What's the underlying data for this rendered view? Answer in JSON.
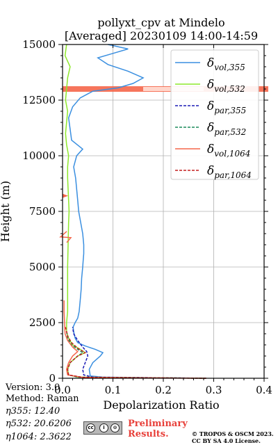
{
  "chart_data": {
    "type": "line",
    "title": "pollyxt_cpv at Mindelo",
    "subtitle": "[Averaged] 20230109 14:00-14:59",
    "xlabel": "Depolarization Ratio",
    "ylabel": "Height (m)",
    "xlim": [
      0,
      0.4
    ],
    "ylim": [
      0,
      15000
    ],
    "x_ticks": [
      "0.0",
      "0.1",
      "0.2",
      "0.3",
      "0.4"
    ],
    "y_ticks": [
      "0",
      "2500",
      "5000",
      "7500",
      "10000",
      "12500",
      "15000"
    ],
    "grid": true,
    "legend_position": "top-right",
    "legend": [
      {
        "base": "δ",
        "sub": "vol,355",
        "color": "#3a8fe0",
        "dash": "solid"
      },
      {
        "base": "δ",
        "sub": "vol,532",
        "color": "#8ee82a",
        "dash": "solid"
      },
      {
        "base": "δ",
        "sub": "par,355",
        "color": "#1a1ab5",
        "dash": "dashed"
      },
      {
        "base": "δ",
        "sub": "par,532",
        "color": "#1b8a5a",
        "dash": "dashed"
      },
      {
        "base": "δ",
        "sub": "vol,1064",
        "color": "#f5664a",
        "dash": "solid"
      },
      {
        "base": "δ",
        "sub": "par,1064",
        "color": "#c41e1e",
        "dash": "dashed"
      }
    ],
    "series": [
      {
        "name": "δvol,355",
        "color": "#3a8fe0",
        "dash": "solid",
        "points": [
          [
            0.285,
            0
          ],
          [
            0.08,
            50
          ],
          [
            0.055,
            100
          ],
          [
            0.053,
            400
          ],
          [
            0.06,
            700
          ],
          [
            0.075,
            1000
          ],
          [
            0.08,
            1150
          ],
          [
            0.065,
            1300
          ],
          [
            0.045,
            1450
          ],
          [
            0.03,
            1600
          ],
          [
            0.025,
            1800
          ],
          [
            0.022,
            2100
          ],
          [
            0.021,
            2300
          ],
          [
            0.025,
            2500
          ],
          [
            0.03,
            2700
          ],
          [
            0.033,
            3000
          ],
          [
            0.035,
            3500
          ],
          [
            0.037,
            4000
          ],
          [
            0.038,
            4500
          ],
          [
            0.04,
            5000
          ],
          [
            0.041,
            5300
          ],
          [
            0.042,
            5600
          ],
          [
            0.042,
            6000
          ],
          [
            0.04,
            6500
          ],
          [
            0.036,
            7000
          ],
          [
            0.032,
            7500
          ],
          [
            0.03,
            8000
          ],
          [
            0.028,
            8500
          ],
          [
            0.026,
            9000
          ],
          [
            0.022,
            9500
          ],
          [
            0.028,
            10000
          ],
          [
            0.04,
            10300
          ],
          [
            0.018,
            10700
          ],
          [
            0.015,
            11200
          ],
          [
            0.012,
            11700
          ],
          [
            0.02,
            12200
          ],
          [
            0.035,
            12600
          ],
          [
            0.06,
            12900
          ],
          [
            0.11,
            13050
          ],
          [
            0.14,
            13250
          ],
          [
            0.16,
            13500
          ],
          [
            0.13,
            13800
          ],
          [
            0.09,
            14100
          ],
          [
            0.07,
            14400
          ],
          [
            0.1,
            14600
          ],
          [
            0.13,
            14800
          ],
          [
            0.09,
            15000
          ]
        ]
      },
      {
        "name": "δvol,532",
        "color": "#8ee82a",
        "dash": "solid",
        "points": [
          [
            0.285,
            0
          ],
          [
            0.03,
            50
          ],
          [
            0.012,
            150
          ],
          [
            0.01,
            400
          ],
          [
            0.015,
            700
          ],
          [
            0.03,
            1000
          ],
          [
            0.045,
            1150
          ],
          [
            0.035,
            1300
          ],
          [
            0.02,
            1500
          ],
          [
            0.012,
            1800
          ],
          [
            0.008,
            2100
          ],
          [
            0.008,
            2500
          ],
          [
            0.01,
            3000
          ],
          [
            0.01,
            4000
          ],
          [
            0.01,
            5000
          ],
          [
            0.011,
            6000
          ],
          [
            0.012,
            7000
          ],
          [
            0.013,
            7500
          ],
          [
            0.012,
            8000
          ],
          [
            0.01,
            9000
          ],
          [
            0.01,
            9500
          ],
          [
            0.012,
            10000
          ],
          [
            0.008,
            10500
          ],
          [
            0.006,
            11000
          ],
          [
            0.008,
            11500
          ],
          [
            0.01,
            12000
          ],
          [
            0.006,
            12500
          ],
          [
            0.008,
            13000
          ],
          [
            0.01,
            13500
          ],
          [
            0.015,
            14000
          ],
          [
            0.005,
            14500
          ],
          [
            0.008,
            15000
          ]
        ]
      },
      {
        "name": "δpar,355",
        "color": "#1a1ab5",
        "dash": "dashed",
        "points": [
          [
            0.285,
            0
          ],
          [
            0.06,
            50
          ],
          [
            0.042,
            150
          ],
          [
            0.04,
            400
          ],
          [
            0.045,
            700
          ],
          [
            0.05,
            1000
          ],
          [
            0.048,
            1200
          ],
          [
            0.04,
            1400
          ],
          [
            0.03,
            1700
          ],
          [
            0.022,
            2000
          ],
          [
            0.02,
            2300
          ]
        ]
      },
      {
        "name": "δpar,532",
        "color": "#1b8a5a",
        "dash": "dashed",
        "points": [
          [
            0.285,
            0
          ],
          [
            0.03,
            50
          ],
          [
            0.012,
            150
          ],
          [
            0.01,
            400
          ],
          [
            0.015,
            700
          ],
          [
            0.03,
            1000
          ],
          [
            0.04,
            1150
          ],
          [
            0.03,
            1300
          ],
          [
            0.018,
            1500
          ],
          [
            0.01,
            1800
          ],
          [
            0.008,
            2100
          ]
        ]
      },
      {
        "name": "δvol,1064",
        "color": "#f5664a",
        "dash": "solid",
        "points": [
          [
            0.285,
            0
          ],
          [
            0.04,
            40
          ],
          [
            0.01,
            150
          ],
          [
            0.008,
            400
          ],
          [
            0.012,
            700
          ],
          [
            0.02,
            1000
          ],
          [
            0.03,
            1200
          ],
          [
            0.02,
            1400
          ],
          [
            0.01,
            1700
          ],
          [
            0.005,
            2000
          ],
          [
            0.004,
            2500
          ],
          [
            0.003,
            3000
          ],
          [
            0.003,
            3500
          ]
        ]
      },
      {
        "name": "δpar,1064",
        "color": "#c41e1e",
        "dash": "dashed",
        "points": [
          [
            0.285,
            0
          ],
          [
            0.04,
            40
          ],
          [
            0.012,
            150
          ],
          [
            0.01,
            400
          ],
          [
            0.015,
            700
          ],
          [
            0.03,
            1000
          ],
          [
            0.045,
            1150
          ],
          [
            0.03,
            1350
          ],
          [
            0.018,
            1600
          ],
          [
            0.01,
            1900
          ],
          [
            0.006,
            2300
          ]
        ]
      }
    ],
    "annotations": {
      "red_band_height": 13000,
      "red_marker_1": {
        "x": 0.0,
        "y": 8200
      },
      "red_marker_2": {
        "x": 0.0,
        "y": 6350
      }
    }
  },
  "info": {
    "version": "Version: 3.0",
    "method": "Method: Raman",
    "eta355": "η355:  12.40",
    "eta532": "η532: 20.6206",
    "eta1064": "η1064: 2.3622"
  },
  "footer": {
    "preliminary_line1": "Preliminary",
    "preliminary_line2": "Results.",
    "copyright_line1": "© TROPOS & OSCM 2023.",
    "copyright_line2": "CC BY SA 4.0 License.",
    "cc_labels": [
      "cc",
      "i",
      "⊙"
    ]
  }
}
